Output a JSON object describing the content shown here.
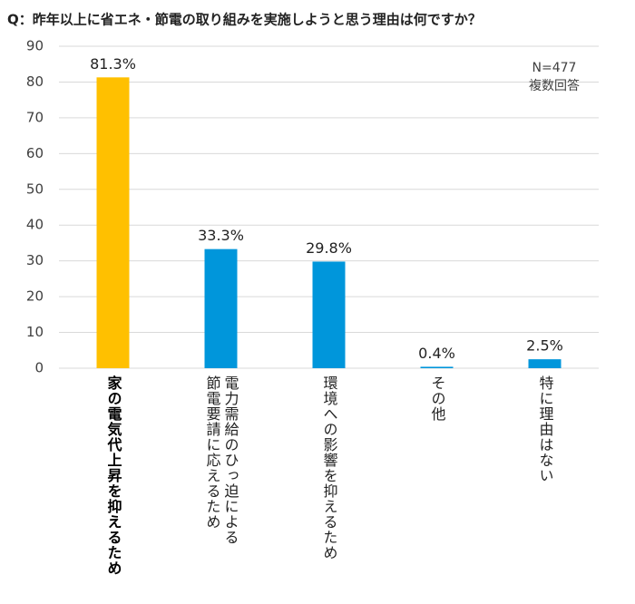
{
  "chart_data": {
    "type": "bar",
    "title": "Q：昨年以上に省エネ・節電の取り組みを実施しようと思う理由は何ですか？",
    "categories": [
      "家の電気代上昇を抑えるため",
      "電力需給のひっ迫による\n節電要請に応えるため",
      "環境への影響を抑えるため",
      "その他",
      "特に理由はない"
    ],
    "values": [
      81.3,
      33.3,
      29.8,
      0.4,
      2.5
    ],
    "value_labels": [
      "81.3%",
      "33.3%",
      "29.8%",
      "0.4%",
      "2.5%"
    ],
    "colors": [
      "#ffc000",
      "#0096db",
      "#0096db",
      "#0096db",
      "#0096db"
    ],
    "annotation": [
      "N=477",
      "複数回答"
    ],
    "ylim": [
      0,
      90
    ],
    "yticks": [
      0,
      10,
      20,
      30,
      40,
      50,
      60,
      70,
      80,
      90
    ],
    "grid": true
  }
}
